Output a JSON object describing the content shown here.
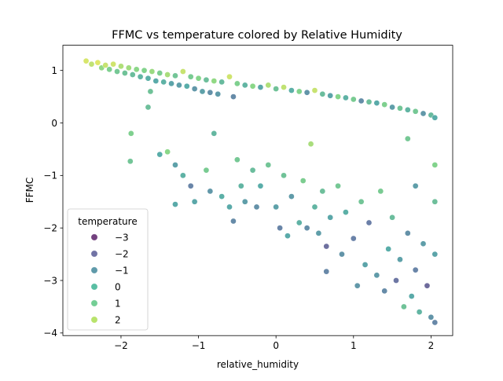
{
  "chart_data": {
    "type": "scatter",
    "title": "FFMC vs temperature colored by Relative Humidity",
    "xlabel": "relative_humidity",
    "ylabel": "FFMC",
    "xlim": [
      -2.75,
      2.28
    ],
    "ylim": [
      -4.05,
      1.48
    ],
    "xticks": [
      -2,
      -1,
      0,
      1,
      2
    ],
    "xtick_labels": [
      "−2",
      "−1",
      "0",
      "1",
      "2"
    ],
    "yticks": [
      -4,
      -3,
      -2,
      -1,
      0,
      1
    ],
    "ytick_labels": [
      "−4",
      "−3",
      "−2",
      "−1",
      "0",
      "1"
    ],
    "grid": false,
    "colormap": "viridis",
    "point_alpha": 0.75,
    "hue_range": [
      -3.6,
      2.6
    ],
    "legend": {
      "title": "temperature",
      "placement": "lower-left",
      "entries": [
        {
          "label": "−3",
          "value": -3,
          "color": "#440154"
        },
        {
          "label": "−2",
          "value": -2,
          "color": "#414487"
        },
        {
          "label": "−1",
          "value": -1,
          "color": "#2a788e"
        },
        {
          "label": "0",
          "value": 0,
          "color": "#22a884"
        },
        {
          "label": "1",
          "value": 1,
          "color": "#45be71"
        },
        {
          "label": "2",
          "value": 2,
          "color": "#a0da39"
        }
      ]
    },
    "series": [
      {
        "points": [
          {
            "x": -2.45,
            "y": 1.18,
            "t": 2.1
          },
          {
            "x": -2.38,
            "y": 1.12,
            "t": 1.8
          },
          {
            "x": -2.3,
            "y": 1.15,
            "t": 2.2
          },
          {
            "x": -2.25,
            "y": 1.05,
            "t": 1.2
          },
          {
            "x": -2.2,
            "y": 1.1,
            "t": 1.9
          },
          {
            "x": -2.15,
            "y": 1.02,
            "t": 0.8
          },
          {
            "x": -2.1,
            "y": 1.12,
            "t": 2.0
          },
          {
            "x": -2.05,
            "y": 0.98,
            "t": 0.5
          },
          {
            "x": -2.0,
            "y": 1.08,
            "t": 1.6
          },
          {
            "x": -1.95,
            "y": 0.95,
            "t": 0.3
          },
          {
            "x": -1.9,
            "y": 1.05,
            "t": 1.4
          },
          {
            "x": -1.85,
            "y": 0.92,
            "t": 0.1
          },
          {
            "x": -1.8,
            "y": 1.02,
            "t": 1.1
          },
          {
            "x": -1.75,
            "y": 0.88,
            "t": -0.2
          },
          {
            "x": -1.7,
            "y": 1.0,
            "t": 0.9
          },
          {
            "x": -1.65,
            "y": 0.85,
            "t": -0.4
          },
          {
            "x": -1.6,
            "y": 0.98,
            "t": 1.3
          },
          {
            "x": -1.55,
            "y": 0.8,
            "t": -0.6
          },
          {
            "x": -1.5,
            "y": 0.95,
            "t": 0.7
          },
          {
            "x": -1.45,
            "y": 0.78,
            "t": -0.3
          },
          {
            "x": -1.4,
            "y": 0.92,
            "t": 1.5
          },
          {
            "x": -1.35,
            "y": 0.75,
            "t": -0.8
          },
          {
            "x": -1.3,
            "y": 0.9,
            "t": 0.4
          },
          {
            "x": -1.25,
            "y": 0.72,
            "t": -1.0
          },
          {
            "x": -1.2,
            "y": 0.98,
            "t": 1.9
          },
          {
            "x": -1.15,
            "y": 0.7,
            "t": -0.5
          },
          {
            "x": -1.1,
            "y": 0.88,
            "t": 0.6
          },
          {
            "x": -1.05,
            "y": 0.65,
            "t": -1.2
          },
          {
            "x": -1.0,
            "y": 0.85,
            "t": 1.0
          },
          {
            "x": -0.95,
            "y": 0.6,
            "t": -0.9
          },
          {
            "x": -0.9,
            "y": 0.82,
            "t": 0.2
          },
          {
            "x": -0.85,
            "y": 0.58,
            "t": -1.4
          },
          {
            "x": -0.8,
            "y": 0.8,
            "t": 1.2
          },
          {
            "x": -0.75,
            "y": 0.55,
            "t": -1.1
          },
          {
            "x": -0.7,
            "y": 0.78,
            "t": 0.0
          },
          {
            "x": -0.6,
            "y": 0.88,
            "t": 2.0
          },
          {
            "x": -0.55,
            "y": 0.5,
            "t": -1.6
          },
          {
            "x": -0.5,
            "y": 0.75,
            "t": 0.8
          },
          {
            "x": -0.4,
            "y": 0.72,
            "t": -0.2
          },
          {
            "x": -0.3,
            "y": 0.7,
            "t": 1.1
          },
          {
            "x": -0.2,
            "y": 0.68,
            "t": -0.7
          },
          {
            "x": -0.1,
            "y": 0.72,
            "t": 1.6
          },
          {
            "x": 0.0,
            "y": 0.65,
            "t": 0.3
          },
          {
            "x": 0.1,
            "y": 0.68,
            "t": 1.8
          },
          {
            "x": 0.2,
            "y": 0.62,
            "t": -0.4
          },
          {
            "x": 0.3,
            "y": 0.6,
            "t": 0.9
          },
          {
            "x": 0.4,
            "y": 0.58,
            "t": -1.3
          },
          {
            "x": 0.5,
            "y": 0.62,
            "t": 1.9
          },
          {
            "x": 0.6,
            "y": 0.55,
            "t": 0.1
          },
          {
            "x": 0.7,
            "y": 0.52,
            "t": -0.8
          },
          {
            "x": 0.8,
            "y": 0.5,
            "t": 1.0
          },
          {
            "x": 0.9,
            "y": 0.48,
            "t": -0.3
          },
          {
            "x": 1.0,
            "y": 0.45,
            "t": 0.6
          },
          {
            "x": 1.1,
            "y": 0.42,
            "t": -1.5
          },
          {
            "x": 1.2,
            "y": 0.4,
            "t": 0.2
          },
          {
            "x": 1.3,
            "y": 0.38,
            "t": -0.6
          },
          {
            "x": 1.4,
            "y": 0.35,
            "t": 0.8
          },
          {
            "x": 1.5,
            "y": 0.3,
            "t": -1.0
          },
          {
            "x": 1.6,
            "y": 0.28,
            "t": 0.4
          },
          {
            "x": 1.7,
            "y": 0.25,
            "t": -0.2
          },
          {
            "x": 1.8,
            "y": 0.22,
            "t": 0.5
          },
          {
            "x": 1.9,
            "y": 0.18,
            "t": -1.2
          },
          {
            "x": 2.0,
            "y": 0.15,
            "t": 0.0
          },
          {
            "x": 2.05,
            "y": 0.1,
            "t": -0.5
          },
          {
            "x": -1.65,
            "y": 0.3,
            "t": 0.2
          },
          {
            "x": -1.5,
            "y": -0.6,
            "t": -0.5
          },
          {
            "x": -1.4,
            "y": -0.55,
            "t": 1.1
          },
          {
            "x": -1.3,
            "y": -0.8,
            "t": -0.9
          },
          {
            "x": -1.2,
            "y": -1.0,
            "t": -0.3
          },
          {
            "x": -1.1,
            "y": -1.2,
            "t": -1.8
          },
          {
            "x": -1.05,
            "y": -1.5,
            "t": -0.7
          },
          {
            "x": -0.9,
            "y": -0.9,
            "t": 0.6
          },
          {
            "x": -0.85,
            "y": -1.3,
            "t": -1.2
          },
          {
            "x": -0.8,
            "y": -0.2,
            "t": -0.1
          },
          {
            "x": -0.7,
            "y": -1.4,
            "t": -0.4
          },
          {
            "x": -0.6,
            "y": -1.6,
            "t": -0.6
          },
          {
            "x": -0.55,
            "y": -1.87,
            "t": -1.6
          },
          {
            "x": -0.5,
            "y": -0.7,
            "t": 0.5
          },
          {
            "x": -0.45,
            "y": -1.2,
            "t": -0.2
          },
          {
            "x": -0.4,
            "y": -1.5,
            "t": -1.0
          },
          {
            "x": -0.3,
            "y": -0.9,
            "t": 0.1
          },
          {
            "x": -0.25,
            "y": -1.6,
            "t": -1.4
          },
          {
            "x": -0.2,
            "y": -1.2,
            "t": -0.5
          },
          {
            "x": -0.1,
            "y": -0.8,
            "t": 0.4
          },
          {
            "x": 0.0,
            "y": -1.6,
            "t": -0.9
          },
          {
            "x": 0.05,
            "y": -2.0,
            "t": -1.8
          },
          {
            "x": 0.1,
            "y": -1.0,
            "t": 0.3
          },
          {
            "x": 0.15,
            "y": -2.15,
            "t": -0.6
          },
          {
            "x": 0.2,
            "y": -1.4,
            "t": -1.1
          },
          {
            "x": 0.3,
            "y": -1.9,
            "t": -0.3
          },
          {
            "x": 0.35,
            "y": -1.1,
            "t": 0.7
          },
          {
            "x": 0.4,
            "y": -2.0,
            "t": -1.5
          },
          {
            "x": 0.45,
            "y": -0.4,
            "t": 1.5
          },
          {
            "x": 0.5,
            "y": -1.6,
            "t": -0.2
          },
          {
            "x": 0.55,
            "y": -2.1,
            "t": -1.0
          },
          {
            "x": 0.6,
            "y": -1.3,
            "t": 0.2
          },
          {
            "x": 0.65,
            "y": -2.35,
            "t": -2.4
          },
          {
            "x": 0.7,
            "y": -1.8,
            "t": -0.7
          },
          {
            "x": 0.8,
            "y": -1.2,
            "t": 0.5
          },
          {
            "x": 0.85,
            "y": -2.5,
            "t": -1.3
          },
          {
            "x": 0.9,
            "y": -1.7,
            "t": -0.4
          },
          {
            "x": 1.0,
            "y": -2.2,
            "t": -1.9
          },
          {
            "x": 1.05,
            "y": -3.1,
            "t": -1.2
          },
          {
            "x": 1.1,
            "y": -1.5,
            "t": 0.4
          },
          {
            "x": 1.15,
            "y": -2.7,
            "t": -0.8
          },
          {
            "x": 1.2,
            "y": -1.9,
            "t": -2.0
          },
          {
            "x": 1.3,
            "y": -2.9,
            "t": -1.1
          },
          {
            "x": 1.35,
            "y": -1.3,
            "t": 0.6
          },
          {
            "x": 1.4,
            "y": -3.2,
            "t": -1.6
          },
          {
            "x": 1.45,
            "y": -2.4,
            "t": -0.5
          },
          {
            "x": 1.5,
            "y": -1.8,
            "t": 0.1
          },
          {
            "x": 1.55,
            "y": -3.0,
            "t": -2.2
          },
          {
            "x": 1.6,
            "y": -2.6,
            "t": -0.9
          },
          {
            "x": 1.65,
            "y": -3.5,
            "t": 0.3
          },
          {
            "x": 1.7,
            "y": -2.1,
            "t": -1.4
          },
          {
            "x": 1.75,
            "y": -3.3,
            "t": -0.6
          },
          {
            "x": 1.8,
            "y": -2.8,
            "t": -1.8
          },
          {
            "x": 1.85,
            "y": -3.6,
            "t": -0.2
          },
          {
            "x": 1.9,
            "y": -2.3,
            "t": -1.0
          },
          {
            "x": 1.95,
            "y": -3.1,
            "t": -2.5
          },
          {
            "x": 2.0,
            "y": -3.7,
            "t": -1.3
          },
          {
            "x": 2.05,
            "y": -3.8,
            "t": -1.7
          },
          {
            "x": 2.05,
            "y": -2.5,
            "t": -0.8
          },
          {
            "x": 2.05,
            "y": -1.5,
            "t": 0.2
          },
          {
            "x": 2.05,
            "y": -0.8,
            "t": 0.9
          },
          {
            "x": -1.87,
            "y": -0.2,
            "t": 0.8
          },
          {
            "x": -1.88,
            "y": -0.73,
            "t": 0.4
          },
          {
            "x": -1.62,
            "y": 0.6,
            "t": 0.3
          },
          {
            "x": -1.3,
            "y": -1.55,
            "t": -0.6
          },
          {
            "x": 0.65,
            "y": -2.83,
            "t": -1.7
          },
          {
            "x": 1.7,
            "y": -0.3,
            "t": 0.5
          },
          {
            "x": 1.8,
            "y": -1.2,
            "t": -1.0
          }
        ]
      }
    ]
  }
}
